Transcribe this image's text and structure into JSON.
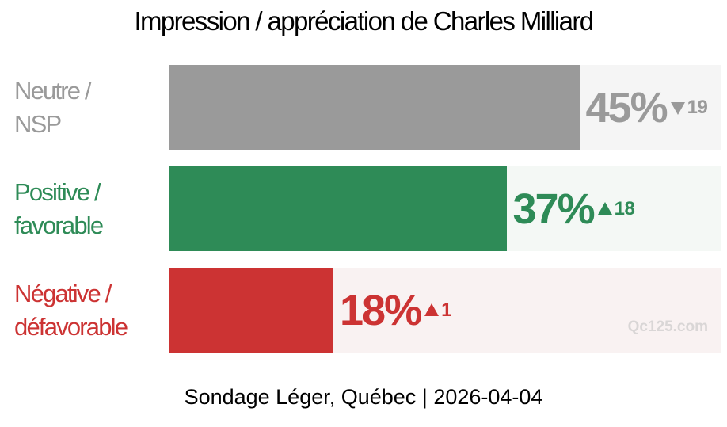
{
  "chart_data": {
    "type": "bar",
    "orientation": "horizontal",
    "title": "Impression / appréciation de Charles Milliard",
    "categories": [
      "Neutre / NSP",
      "Positive / favorable",
      "Négative / défavorable"
    ],
    "values": [
      45,
      37,
      18
    ],
    "value_labels": [
      "45%",
      "37%",
      "18%"
    ],
    "changes": [
      {
        "direction": "down",
        "value": "19"
      },
      {
        "direction": "up",
        "value": "18"
      },
      {
        "direction": "up",
        "value": "1"
      }
    ],
    "xlim": [
      0,
      100
    ],
    "colors": [
      "#9a9a9a",
      "#2e8b57",
      "#cc3333"
    ],
    "track_colors": [
      "#f5f5f5",
      "#f4f8f5",
      "#f9f2f2"
    ],
    "value_colors": [
      "#9a9a9a",
      "#2e8b57",
      "#cc3333"
    ],
    "label_colors": [
      "#9a9a9a",
      "#2e8b57",
      "#cc3333"
    ],
    "grid": false,
    "legend": "none"
  },
  "labels": [
    [
      "Neutre /",
      "NSP"
    ],
    [
      "Positive /",
      "favorable"
    ],
    [
      "Négative /",
      "défavorable"
    ]
  ],
  "watermark": "Qc125.com",
  "source": "Sondage Léger, Québec | 2026-04-04"
}
